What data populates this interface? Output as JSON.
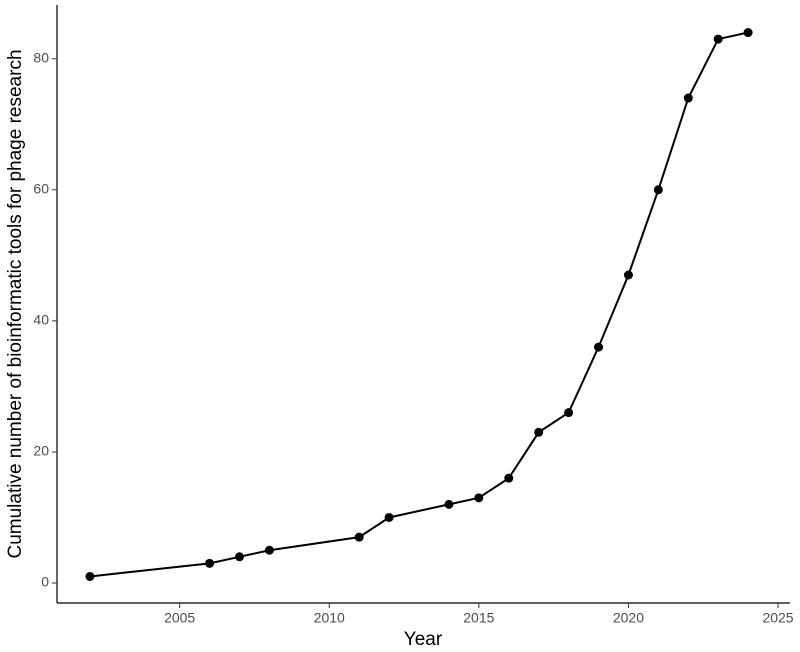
{
  "chart_data": {
    "type": "line",
    "xlabel": "Year",
    "ylabel": "Cumulative number of bioinformatic tools for phage research",
    "x": [
      2002,
      2006,
      2007,
      2008,
      2011,
      2012,
      2014,
      2015,
      2016,
      2017,
      2018,
      2019,
      2020,
      2021,
      2022,
      2023,
      2024
    ],
    "series": [
      {
        "color": "#000000",
        "values": [
          1,
          3,
          4,
          5,
          7,
          10,
          12,
          13,
          16,
          23,
          26,
          36,
          47,
          60,
          74,
          83,
          84
        ]
      }
    ],
    "xlim": [
      2000.9,
      2025.4
    ],
    "xticks": [
      2005,
      2010,
      2015,
      2020,
      2025
    ],
    "ylim": [
      -3.05,
      88.2
    ],
    "yticks": [
      0,
      20,
      40,
      60,
      80
    ],
    "grid": false
  }
}
